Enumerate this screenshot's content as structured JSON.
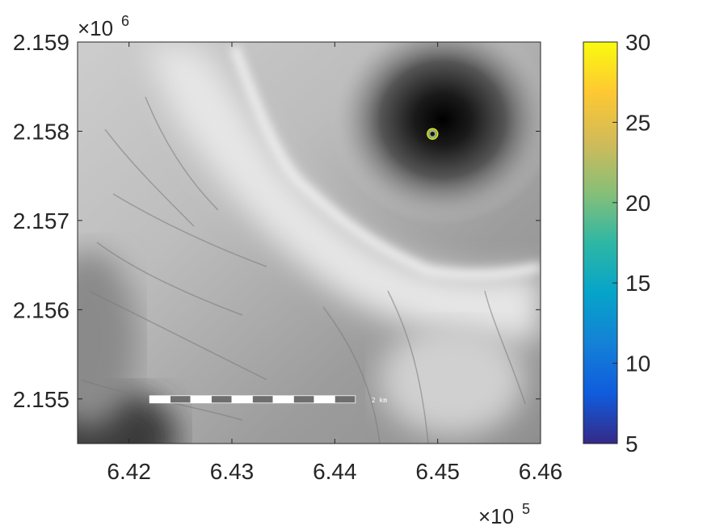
{
  "chart_data": {
    "type": "heatmap",
    "title": "",
    "xlabel": "",
    "ylabel": "",
    "x_exponent_label": {
      "base": "×10",
      "exponent": "5"
    },
    "y_exponent_label": {
      "base": "×10",
      "exponent": "6"
    },
    "xlim": [
      6.415,
      6.46
    ],
    "ylim": [
      2.1545,
      2.159
    ],
    "x_ticks": [
      6.42,
      6.43,
      6.44,
      6.45,
      6.46
    ],
    "x_tick_labels": [
      "6.42",
      "6.43",
      "6.44",
      "6.45",
      "6.46"
    ],
    "y_ticks": [
      2.155,
      2.156,
      2.157,
      2.158,
      2.159
    ],
    "y_tick_labels": [
      "2.155",
      "2.156",
      "2.157",
      "2.158",
      "2.159"
    ],
    "background": "grayscale shaded elevation relief",
    "grid": false,
    "markers": [
      {
        "name": "circle-marker",
        "x": 6.4495,
        "y": 2.15797,
        "colors": [
          "#f5e02a",
          "#7fd34e",
          "#b0b0b0"
        ]
      }
    ],
    "scale_bar": {
      "label": "2 km",
      "x_start": 6.422,
      "x_end": 6.442,
      "y": 2.155,
      "segments": 10
    },
    "colorbar": {
      "colormap": "parula",
      "range": [
        5,
        30
      ],
      "ticks": [
        5,
        10,
        15,
        20,
        25,
        30
      ],
      "tick_labels": [
        "5",
        "10",
        "15",
        "20",
        "25",
        "30"
      ],
      "colors": [
        "#352a87",
        "#0f5cdd",
        "#1481d6",
        "#06a4ca",
        "#2eb7a4",
        "#87bf77",
        "#d1bb59",
        "#fec832",
        "#f9fb0e"
      ]
    }
  }
}
